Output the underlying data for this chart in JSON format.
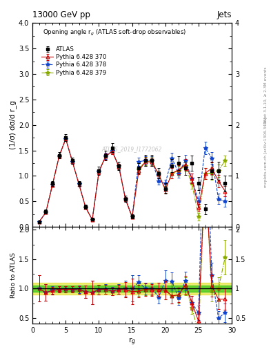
{
  "title_left": "13000 GeV pp",
  "title_right": "Jets",
  "plot_title": "Opening angle r$_g$ (ATLAS soft-drop observables)",
  "xlabel": "r$_g$",
  "ylabel_main": "(1/σ) dσ/d r_g",
  "ylabel_ratio": "Ratio to ATLAS",
  "watermark": "ATLAS_2019_I1772062",
  "x": [
    1,
    2,
    3,
    4,
    5,
    6,
    7,
    8,
    9,
    10,
    11,
    12,
    13,
    14,
    15,
    16,
    17,
    18,
    19,
    20,
    21,
    22,
    23,
    24,
    25,
    26,
    27,
    28,
    29
  ],
  "atlas_y": [
    0.1,
    0.3,
    0.85,
    1.4,
    1.75,
    1.3,
    0.85,
    0.4,
    0.15,
    1.1,
    1.4,
    1.55,
    1.2,
    0.55,
    0.2,
    1.15,
    1.3,
    1.3,
    1.05,
    0.75,
    1.2,
    1.25,
    1.15,
    1.25,
    0.85,
    0.35,
    1.1,
    1.1,
    0.85
  ],
  "atlas_yerr": [
    0.02,
    0.04,
    0.05,
    0.06,
    0.07,
    0.06,
    0.05,
    0.04,
    0.03,
    0.08,
    0.09,
    0.09,
    0.08,
    0.06,
    0.04,
    0.1,
    0.11,
    0.11,
    0.1,
    0.1,
    0.13,
    0.14,
    0.13,
    0.15,
    0.13,
    0.1,
    0.16,
    0.17,
    0.15
  ],
  "py370_y": [
    0.1,
    0.28,
    0.82,
    1.38,
    1.73,
    1.28,
    0.83,
    0.38,
    0.14,
    1.08,
    1.38,
    1.48,
    1.18,
    0.54,
    0.19,
    1.1,
    1.28,
    1.27,
    1.03,
    0.73,
    1.05,
    1.12,
    1.22,
    0.95,
    0.38,
    1.05,
    1.15,
    0.9,
    0.7
  ],
  "py370_yerr": [
    0.01,
    0.02,
    0.03,
    0.04,
    0.05,
    0.04,
    0.03,
    0.02,
    0.01,
    0.05,
    0.06,
    0.06,
    0.05,
    0.04,
    0.02,
    0.07,
    0.08,
    0.08,
    0.07,
    0.07,
    0.1,
    0.09,
    0.11,
    0.1,
    0.07,
    0.11,
    0.12,
    0.12,
    0.1
  ],
  "py378_y": [
    0.1,
    0.28,
    0.83,
    1.38,
    1.73,
    1.28,
    0.84,
    0.38,
    0.14,
    1.08,
    1.39,
    1.49,
    1.19,
    0.55,
    0.2,
    1.28,
    1.3,
    1.3,
    0.9,
    0.85,
    1.35,
    1.05,
    1.3,
    0.95,
    0.5,
    1.55,
    1.35,
    0.55,
    0.5
  ],
  "py378_yerr": [
    0.01,
    0.02,
    0.03,
    0.04,
    0.05,
    0.04,
    0.03,
    0.02,
    0.01,
    0.05,
    0.06,
    0.06,
    0.05,
    0.04,
    0.02,
    0.08,
    0.08,
    0.08,
    0.07,
    0.07,
    0.1,
    0.09,
    0.11,
    0.1,
    0.07,
    0.12,
    0.12,
    0.1,
    0.1
  ],
  "py379_y": [
    0.1,
    0.28,
    0.83,
    1.38,
    1.73,
    1.28,
    0.84,
    0.38,
    0.14,
    1.08,
    1.39,
    1.49,
    1.19,
    0.55,
    0.2,
    1.13,
    1.29,
    1.29,
    1.03,
    0.73,
    1.05,
    1.1,
    1.2,
    0.85,
    0.2,
    1.05,
    1.05,
    1.1,
    1.3
  ],
  "py379_yerr": [
    0.01,
    0.02,
    0.03,
    0.04,
    0.05,
    0.04,
    0.03,
    0.02,
    0.01,
    0.05,
    0.06,
    0.06,
    0.05,
    0.04,
    0.02,
    0.07,
    0.08,
    0.08,
    0.07,
    0.07,
    0.1,
    0.09,
    0.11,
    0.1,
    0.07,
    0.11,
    0.12,
    0.12,
    0.1
  ],
  "atlas_color": "#000000",
  "py370_color": "#cc0000",
  "py378_color": "#1144cc",
  "py379_color": "#88aa00",
  "green_band_lo": 0.95,
  "green_band_hi": 1.05,
  "yellow_band_lo": 0.9,
  "yellow_band_hi": 1.1,
  "green_band_color": "#00bb00",
  "yellow_band_color": "#dddd00",
  "ylim_main": [
    0,
    4
  ],
  "ylim_ratio": [
    0.4,
    2.05
  ],
  "xlim": [
    0,
    30
  ],
  "yticks_main": [
    0,
    0.5,
    1.0,
    1.5,
    2.0,
    2.5,
    3.0,
    3.5,
    4.0
  ],
  "yticks_ratio": [
    0.5,
    1.0,
    1.5,
    2.0
  ]
}
